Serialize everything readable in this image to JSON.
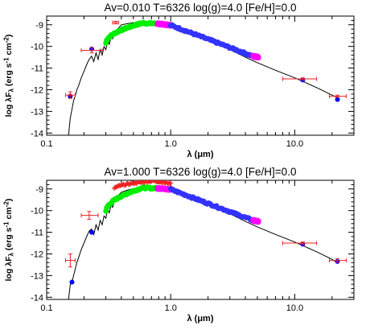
{
  "chart_data": [
    {
      "type": "scatter",
      "title": "Av=0.010  T=6326  log(g)=4.0  [Fe/H]=0.0",
      "xlabel": "λ (μm)",
      "ylabel": "log λF",
      "ylabel_sub": "λ",
      "ylabel_units": "(erg s",
      "ylabel_units_sup1": "-1",
      "ylabel_units_mid": " cm",
      "ylabel_units_sup2": "-2",
      "ylabel_units_end": ")",
      "xscale": "log",
      "xlim": [
        0.1,
        30
      ],
      "ylim": [
        -14.1,
        -8.6
      ],
      "x_ticks": [
        {
          "v": 0.1,
          "label": "0.1"
        },
        {
          "v": 1.0,
          "label": "1.0"
        },
        {
          "v": 10.0,
          "label": "10.0"
        }
      ],
      "y_ticks": [
        {
          "v": -9,
          "label": "-9"
        },
        {
          "v": -10,
          "label": "-10"
        },
        {
          "v": -11,
          "label": "-11"
        },
        {
          "v": -12,
          "label": "-12"
        },
        {
          "v": -13,
          "label": "-13"
        },
        {
          "v": -14,
          "label": "-14"
        }
      ],
      "model_curve": {
        "color": "#000000",
        "x": [
          0.15,
          0.155,
          0.16,
          0.165,
          0.17,
          0.175,
          0.18,
          0.19,
          0.2,
          0.21,
          0.22,
          0.23,
          0.24,
          0.25,
          0.26,
          0.27,
          0.28,
          0.29,
          0.3,
          0.31,
          0.32,
          0.33,
          0.34,
          0.35,
          0.36,
          0.38,
          0.4,
          0.45,
          0.5,
          0.6,
          0.7,
          0.8,
          1.0,
          1.2,
          1.5,
          2.0,
          3.0,
          4.0,
          5.0,
          7.0,
          10.0,
          15.0,
          20.0,
          22.0
        ],
        "y": [
          -14.1,
          -13.3,
          -12.9,
          -12.5,
          -12.3,
          -12.0,
          -11.85,
          -11.45,
          -11.15,
          -10.85,
          -10.6,
          -10.45,
          -10.7,
          -10.3,
          -10.6,
          -10.15,
          -10.4,
          -10.0,
          -10.15,
          -9.75,
          -9.9,
          -9.55,
          -9.65,
          -9.4,
          -9.3,
          -9.15,
          -9.0,
          -8.95,
          -8.9,
          -8.85,
          -8.88,
          -8.92,
          -9.05,
          -9.2,
          -9.4,
          -9.7,
          -10.15,
          -10.5,
          -10.75,
          -11.1,
          -11.45,
          -11.9,
          -12.25,
          -12.35
        ]
      },
      "spectra": [
        {
          "name": "",
          "color": "#00ee00",
          "x_range": [
            0.3,
            0.79
          ],
          "y_start": -9.85,
          "y_peak": -8.92,
          "y_end": -8.95
        },
        {
          "name": "",
          "color": "#ff00ff",
          "x_range": [
            0.78,
            1.02
          ],
          "y_start": -8.95,
          "y_end": -9.02
        },
        {
          "name": "",
          "color": "#3333ff",
          "x_range": [
            1.0,
            4.6
          ],
          "y_start": -9.02,
          "y_end": -10.45
        },
        {
          "name": "",
          "color": "#ff00ff",
          "x_range": [
            4.6,
            5.1
          ],
          "y_start": -10.45,
          "y_end": -10.5
        }
      ],
      "model_points": {
        "color": "#0000ff",
        "points": [
          {
            "x": 0.155,
            "y": -12.3
          },
          {
            "x": 0.231,
            "y": -10.12
          },
          {
            "x": 11.6,
            "y": -11.55
          },
          {
            "x": 22.1,
            "y": -12.45
          }
        ]
      },
      "observed": {
        "color": "#ee2222",
        "points": [
          {
            "x": 0.155,
            "y": -12.25,
            "xerr": [
              0.142,
              0.17
            ],
            "yerr": 0.15
          },
          {
            "x": 0.231,
            "y": -10.18,
            "xerr": [
              0.19,
              0.28
            ],
            "yerr": 0.12
          },
          {
            "x": 0.36,
            "y": -8.9,
            "xerr": [
              0.34,
              0.38
            ],
            "yerr": 0.06
          },
          {
            "x": 11.6,
            "y": -11.5,
            "xerr": [
              8.0,
              15.0
            ],
            "yerr": 0.05
          },
          {
            "x": 22.1,
            "y": -12.3,
            "xerr": [
              19.0,
              26.0
            ],
            "yerr": 0.05
          }
        ]
      },
      "grid": false,
      "legend": "none"
    },
    {
      "type": "scatter",
      "title": "Av=1.000  T=6326  log(g)=4.0  [Fe/H]=0.0",
      "xlabel": "λ (μm)",
      "ylabel": "log λF",
      "ylabel_sub": "λ",
      "ylabel_units": "(erg s",
      "ylabel_units_sup1": "-1",
      "ylabel_units_mid": " cm",
      "ylabel_units_sup2": "-2",
      "ylabel_units_end": ")",
      "xscale": "log",
      "xlim": [
        0.1,
        30
      ],
      "ylim": [
        -14.1,
        -8.6
      ],
      "x_ticks": [
        {
          "v": 0.1,
          "label": "0.1"
        },
        {
          "v": 1.0,
          "label": "1.0"
        },
        {
          "v": 10.0,
          "label": "10.0"
        }
      ],
      "y_ticks": [
        {
          "v": -9,
          "label": "-9"
        },
        {
          "v": -10,
          "label": "-10"
        },
        {
          "v": -11,
          "label": "-11"
        },
        {
          "v": -12,
          "label": "-12"
        },
        {
          "v": -13,
          "label": "-13"
        },
        {
          "v": -14,
          "label": "-14"
        }
      ],
      "model_curve": {
        "color": "#000000",
        "x": [
          0.15,
          0.155,
          0.16,
          0.165,
          0.17,
          0.175,
          0.18,
          0.19,
          0.2,
          0.21,
          0.22,
          0.23,
          0.24,
          0.25,
          0.26,
          0.27,
          0.28,
          0.29,
          0.3,
          0.31,
          0.32,
          0.33,
          0.34,
          0.35,
          0.36,
          0.38,
          0.4,
          0.45,
          0.5,
          0.6,
          0.7,
          0.8,
          1.0,
          1.2,
          1.5,
          2.0,
          3.0,
          4.0,
          5.0,
          7.0,
          10.0,
          15.0,
          20.0,
          22.0
        ],
        "y": [
          -14.1,
          -13.4,
          -13.3,
          -13.0,
          -12.7,
          -12.4,
          -12.2,
          -11.8,
          -11.5,
          -11.2,
          -10.95,
          -10.85,
          -11.1,
          -10.65,
          -10.9,
          -10.45,
          -10.65,
          -10.25,
          -10.35,
          -9.95,
          -10.1,
          -9.75,
          -9.85,
          -9.6,
          -9.5,
          -9.3,
          -9.15,
          -9.05,
          -8.98,
          -8.92,
          -8.92,
          -8.95,
          -9.05,
          -9.2,
          -9.4,
          -9.7,
          -10.15,
          -10.5,
          -10.75,
          -11.1,
          -11.45,
          -11.9,
          -12.25,
          -12.4
        ]
      },
      "spectra": [
        {
          "name": "",
          "color": "#00ee00",
          "x_range": [
            0.3,
            0.79
          ],
          "y_start": -10.05,
          "y_peak": -8.95,
          "y_end": -8.97
        },
        {
          "name": "",
          "color": "#ff00ff",
          "x_range": [
            0.78,
            1.02
          ],
          "y_start": -8.97,
          "y_end": -9.02
        },
        {
          "name": "",
          "color": "#3333ff",
          "x_range": [
            1.0,
            4.6
          ],
          "y_start": -9.02,
          "y_end": -10.45
        },
        {
          "name": "",
          "color": "#ff00ff",
          "x_range": [
            4.6,
            5.1
          ],
          "y_start": -10.45,
          "y_end": -10.5
        },
        {
          "name": "",
          "color": "#ee2222",
          "x_range": [
            0.35,
            1.0
          ],
          "y_start": -9.0,
          "y_peak": -8.62,
          "y_end": -8.75
        }
      ],
      "model_points": {
        "color": "#0000ff",
        "points": [
          {
            "x": 0.16,
            "y": -13.3
          },
          {
            "x": 0.231,
            "y": -11.0
          },
          {
            "x": 11.6,
            "y": -11.55
          },
          {
            "x": 22.1,
            "y": -12.35
          }
        ]
      },
      "observed": {
        "color": "#ee2222",
        "points": [
          {
            "x": 0.155,
            "y": -12.3,
            "xerr": [
              0.142,
              0.17
            ],
            "yerr": 0.3
          },
          {
            "x": 0.22,
            "y": -10.22,
            "xerr": [
              0.19,
              0.26
            ],
            "yerr": 0.18
          },
          {
            "x": 11.6,
            "y": -11.5,
            "xerr": [
              8.0,
              15.0
            ],
            "yerr": 0.05
          },
          {
            "x": 22.1,
            "y": -12.3,
            "xerr": [
              19.0,
              26.0
            ],
            "yerr": 0.08
          }
        ]
      },
      "grid": false,
      "legend": "none"
    }
  ]
}
